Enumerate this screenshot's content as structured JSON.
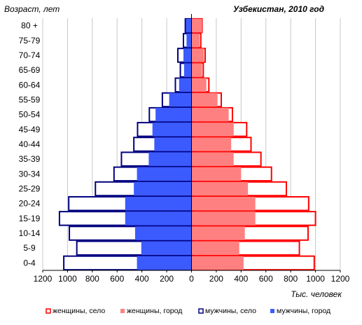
{
  "chart_data": {
    "type": "bar",
    "orientation": "horizontal",
    "layout": "population-pyramid",
    "title": "Узбекистан, 2010 год",
    "ylabel": "Возраст, лет",
    "xlabel": "Тыс. человек",
    "xlim": [
      -1200,
      1200
    ],
    "x_ticks": [
      -1200,
      -1000,
      -800,
      -600,
      -400,
      -200,
      0,
      200,
      400,
      600,
      800,
      1000,
      1200
    ],
    "x_tick_labels": [
      "1200",
      "1000",
      "800",
      "600",
      "400",
      "200",
      "0",
      "200",
      "400",
      "600",
      "800",
      "1000",
      "1200"
    ],
    "categories": [
      "80 +",
      "75-79",
      "70-74",
      "65-69",
      "60-64",
      "55-59",
      "50-54",
      "45-49",
      "40-44",
      "35-39",
      "30-34",
      "25-29",
      "20-24",
      "15-19",
      "10-14",
      "5-9",
      "0-4"
    ],
    "grid": true,
    "legend_position": "bottom",
    "series": [
      {
        "name": "женщины, село",
        "side": "right",
        "style": "outline",
        "color": "#ff0000",
        "values": [
          85,
          75,
          110,
          95,
          140,
          240,
          330,
          445,
          480,
          560,
          645,
          765,
          945,
          1000,
          940,
          870,
          990
        ]
      },
      {
        "name": "женщины, город",
        "side": "right",
        "style": "fill",
        "color": "#ff8080",
        "values": [
          85,
          65,
          100,
          85,
          120,
          210,
          300,
          340,
          320,
          340,
          400,
          455,
          515,
          515,
          430,
          385,
          420
        ]
      },
      {
        "name": "мужчины, село",
        "side": "left",
        "style": "outline",
        "color": "#000080",
        "values": [
          50,
          65,
          110,
          90,
          130,
          235,
          340,
          435,
          465,
          565,
          625,
          775,
          990,
          1065,
          985,
          925,
          1030
        ]
      },
      {
        "name": "мужчины, город",
        "side": "left",
        "style": "fill",
        "color": "#3b5bff",
        "values": [
          45,
          40,
          65,
          60,
          100,
          180,
          290,
          315,
          300,
          345,
          440,
          465,
          535,
          535,
          455,
          405,
          440
        ]
      }
    ]
  }
}
